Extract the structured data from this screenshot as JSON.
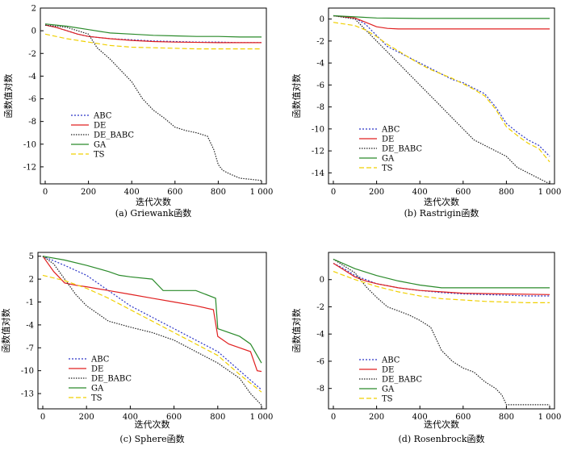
{
  "shared": {
    "xlabel": "迭代次数",
    "ylabel": "函数值对数",
    "legend": [
      {
        "name": "ABC",
        "color": "#2b35c7",
        "dash": "2,2"
      },
      {
        "name": "DE",
        "color": "#e02020",
        "dash": ""
      },
      {
        "name": "DE_BABC",
        "color": "#222222",
        "dash": "1.5,1.5"
      },
      {
        "name": "GA",
        "color": "#2a8a2a",
        "dash": ""
      },
      {
        "name": "TS",
        "color": "#f0d000",
        "dash": "6,3"
      }
    ]
  },
  "chart_data": [
    {
      "type": "line",
      "caption": "(a) Griewank函数",
      "xlim": [
        0,
        1000
      ],
      "ylim": [
        -13.5,
        2
      ],
      "xticks": [
        {
          "v": 0,
          "label": "0"
        },
        {
          "v": 200,
          "label": "200"
        },
        {
          "v": 400,
          "label": "400"
        },
        {
          "v": 600,
          "label": "600"
        },
        {
          "v": 800,
          "label": "800"
        },
        {
          "v": 1000,
          "label": "1 000"
        }
      ],
      "yticks": [
        {
          "v": 2,
          "label": "2"
        },
        {
          "v": 0,
          "label": "0"
        },
        {
          "v": -2,
          "label": "-2"
        },
        {
          "v": -4,
          "label": "-4"
        },
        {
          "v": -6,
          "label": "-6"
        },
        {
          "v": -8,
          "label": "-8"
        },
        {
          "v": -10,
          "label": "-10"
        },
        {
          "v": -12,
          "label": "-12"
        }
      ],
      "series": [
        {
          "name": "ABC",
          "x": [
            0,
            50,
            100,
            150,
            200,
            300,
            400,
            500,
            600,
            700,
            800,
            900,
            1000
          ],
          "y": [
            0.5,
            0.3,
            0.0,
            -0.3,
            -0.5,
            -0.7,
            -0.8,
            -0.9,
            -0.95,
            -1.0,
            -1.0,
            -1.05,
            -1.05
          ]
        },
        {
          "name": "DE",
          "x": [
            0,
            50,
            100,
            150,
            200,
            300,
            400,
            500,
            600,
            800,
            1000
          ],
          "y": [
            0.5,
            0.3,
            0.0,
            -0.3,
            -0.5,
            -0.7,
            -0.85,
            -0.95,
            -1.0,
            -1.05,
            -1.05
          ]
        },
        {
          "name": "DE_BABC",
          "x": [
            0,
            100,
            200,
            240,
            300,
            350,
            400,
            450,
            500,
            550,
            600,
            650,
            700,
            750,
            780,
            800,
            820,
            850,
            900,
            950,
            1000
          ],
          "y": [
            0.5,
            0.3,
            -0.3,
            -1.5,
            -2.5,
            -3.5,
            -4.5,
            -6.0,
            -7.0,
            -7.7,
            -8.5,
            -8.8,
            -9.0,
            -9.3,
            -10.5,
            -11.8,
            -12.3,
            -12.6,
            -13.0,
            -13.1,
            -13.2
          ]
        },
        {
          "name": "GA",
          "x": [
            0,
            100,
            200,
            300,
            400,
            500,
            600,
            700,
            800,
            900,
            1000
          ],
          "y": [
            0.6,
            0.4,
            0.1,
            -0.2,
            -0.3,
            -0.4,
            -0.45,
            -0.5,
            -0.5,
            -0.55,
            -0.55
          ]
        },
        {
          "name": "TS",
          "x": [
            0,
            100,
            200,
            300,
            400,
            500,
            600,
            700,
            800,
            900,
            1000
          ],
          "y": [
            -0.3,
            -0.7,
            -1.0,
            -1.3,
            -1.45,
            -1.5,
            -1.55,
            -1.6,
            -1.6,
            -1.6,
            -1.6
          ]
        }
      ]
    },
    {
      "type": "line",
      "caption": "(b) Rastrigin函数",
      "xlim": [
        0,
        1000
      ],
      "ylim": [
        -15,
        1
      ],
      "xticks": [
        {
          "v": 0,
          "label": "0"
        },
        {
          "v": 200,
          "label": "200"
        },
        {
          "v": 400,
          "label": "400"
        },
        {
          "v": 600,
          "label": "600"
        },
        {
          "v": 800,
          "label": "800"
        },
        {
          "v": 1000,
          "label": "1 000"
        }
      ],
      "yticks": [
        {
          "v": 0,
          "label": "0"
        },
        {
          "v": -2,
          "label": "-2"
        },
        {
          "v": -4,
          "label": "-4"
        },
        {
          "v": -6,
          "label": "-6"
        },
        {
          "v": -8,
          "label": "-8"
        },
        {
          "v": -10,
          "label": "-10"
        },
        {
          "v": -12,
          "label": "-12"
        },
        {
          "v": -14,
          "label": "-14"
        }
      ],
      "series": [
        {
          "name": "ABC",
          "x": [
            0,
            100,
            150,
            200,
            250,
            300,
            350,
            400,
            450,
            500,
            550,
            600,
            650,
            700,
            750,
            800,
            850,
            900,
            950,
            1000
          ],
          "y": [
            0.3,
            0.1,
            -0.5,
            -1.5,
            -2.5,
            -3.0,
            -3.5,
            -4.0,
            -4.5,
            -5.0,
            -5.5,
            -5.8,
            -6.3,
            -6.8,
            -8.0,
            -9.5,
            -10.3,
            -11.0,
            -11.5,
            -12.5
          ]
        },
        {
          "name": "DE",
          "x": [
            0,
            100,
            150,
            200,
            250,
            300,
            400,
            600,
            800,
            1000
          ],
          "y": [
            0.3,
            0.1,
            -0.3,
            -0.7,
            -0.85,
            -0.9,
            -0.9,
            -0.9,
            -0.9,
            -0.9
          ]
        },
        {
          "name": "DE_BABC",
          "x": [
            0,
            100,
            150,
            200,
            250,
            300,
            350,
            400,
            450,
            500,
            550,
            600,
            650,
            700,
            750,
            800,
            850,
            900,
            950,
            1000
          ],
          "y": [
            0.3,
            0.0,
            -1.0,
            -2.0,
            -3.0,
            -4.0,
            -5.0,
            -6.0,
            -7.0,
            -8.0,
            -9.0,
            -10.0,
            -11.0,
            -11.5,
            -12.0,
            -12.5,
            -13.5,
            -14.0,
            -14.5,
            -15.0
          ]
        },
        {
          "name": "GA",
          "x": [
            0,
            100,
            200,
            400,
            600,
            800,
            1000
          ],
          "y": [
            0.3,
            0.2,
            0.1,
            0.05,
            0.05,
            0.05,
            0.05
          ]
        },
        {
          "name": "TS",
          "x": [
            0,
            100,
            150,
            200,
            250,
            300,
            350,
            400,
            450,
            500,
            550,
            600,
            650,
            700,
            750,
            800,
            850,
            900,
            950,
            1000
          ],
          "y": [
            -0.3,
            -0.6,
            -1.0,
            -1.6,
            -2.3,
            -2.9,
            -3.5,
            -4.1,
            -4.6,
            -5.0,
            -5.4,
            -5.9,
            -6.4,
            -7.0,
            -8.2,
            -9.8,
            -10.6,
            -11.3,
            -11.8,
            -13.0
          ]
        }
      ]
    },
    {
      "type": "line",
      "caption": "(c) Sphere函数",
      "xlim": [
        0,
        1000
      ],
      "ylim": [
        -15,
        5.5
      ],
      "xticks": [
        {
          "v": 0,
          "label": "0"
        },
        {
          "v": 200,
          "label": "200"
        },
        {
          "v": 400,
          "label": "400"
        },
        {
          "v": 600,
          "label": "600"
        },
        {
          "v": 800,
          "label": "800"
        },
        {
          "v": 1000,
          "label": "1 000"
        }
      ],
      "yticks": [
        {
          "v": 5,
          "label": "5"
        },
        {
          "v": 2,
          "label": "2"
        },
        {
          "v": -1,
          "label": "-1"
        },
        {
          "v": -4,
          "label": "-4"
        },
        {
          "v": -7,
          "label": "-7"
        },
        {
          "v": -10,
          "label": "-10"
        },
        {
          "v": -13,
          "label": "-13"
        }
      ],
      "series": [
        {
          "name": "ABC",
          "x": [
            0,
            100,
            200,
            300,
            400,
            500,
            600,
            700,
            800,
            900,
            1000
          ],
          "y": [
            5,
            3.8,
            2.5,
            0.5,
            -1.5,
            -3.0,
            -4.5,
            -6.0,
            -7.5,
            -10.0,
            -12.5
          ]
        },
        {
          "name": "DE",
          "x": [
            0,
            50,
            100,
            150,
            200,
            300,
            400,
            500,
            600,
            700,
            780,
            800,
            850,
            900,
            950,
            980,
            1000
          ],
          "y": [
            5,
            3.0,
            1.5,
            1.2,
            1.0,
            0.5,
            0.0,
            -0.5,
            -1.0,
            -1.5,
            -2.0,
            -5.5,
            -6.5,
            -7.0,
            -7.5,
            -10.0,
            -10.1
          ]
        },
        {
          "name": "DE_BABC",
          "x": [
            0,
            50,
            100,
            150,
            200,
            250,
            300,
            400,
            500,
            600,
            700,
            800,
            850,
            900,
            950,
            1000
          ],
          "y": [
            5,
            4.0,
            2.0,
            0.0,
            -1.5,
            -2.5,
            -3.5,
            -4.3,
            -5.0,
            -6.0,
            -7.5,
            -9.0,
            -10.0,
            -11.0,
            -13.0,
            -14.5
          ]
        },
        {
          "name": "GA",
          "x": [
            0,
            100,
            200,
            300,
            350,
            400,
            500,
            550,
            600,
            700,
            790,
            800,
            900,
            950,
            1000
          ],
          "y": [
            5,
            4.5,
            3.8,
            3.0,
            2.5,
            2.3,
            2.0,
            0.5,
            0.5,
            0.5,
            -0.5,
            -4.5,
            -5.5,
            -6.5,
            -9.0
          ]
        },
        {
          "name": "TS",
          "x": [
            0,
            100,
            200,
            300,
            400,
            500,
            600,
            700,
            800,
            900,
            1000
          ],
          "y": [
            2.5,
            1.8,
            0.8,
            -0.5,
            -2.0,
            -3.5,
            -5.0,
            -6.5,
            -8.0,
            -10.5,
            -12.8
          ]
        }
      ]
    },
    {
      "type": "line",
      "caption": "(d) Rosenbrock函数",
      "xlim": [
        0,
        1000
      ],
      "ylim": [
        -9.5,
        2
      ],
      "xticks": [
        {
          "v": 0,
          "label": "0"
        },
        {
          "v": 200,
          "label": "200"
        },
        {
          "v": 400,
          "label": "400"
        },
        {
          "v": 600,
          "label": "600"
        },
        {
          "v": 800,
          "label": "800"
        },
        {
          "v": 1000,
          "label": "1 000"
        }
      ],
      "yticks": [
        {
          "v": 0,
          "label": "0"
        },
        {
          "v": -2,
          "label": "-2"
        },
        {
          "v": -4,
          "label": "-4"
        },
        {
          "v": -6,
          "label": "-6"
        },
        {
          "v": -8,
          "label": "-8"
        }
      ],
      "series": [
        {
          "name": "ABC",
          "x": [
            0,
            50,
            100,
            150,
            200,
            300,
            400,
            500,
            600,
            700,
            800,
            900,
            1000
          ],
          "y": [
            1.2,
            0.8,
            0.3,
            0.0,
            -0.3,
            -0.6,
            -0.8,
            -0.95,
            -1.05,
            -1.1,
            -1.15,
            -1.2,
            -1.2
          ]
        },
        {
          "name": "DE",
          "x": [
            0,
            50,
            100,
            150,
            200,
            300,
            400,
            500,
            600,
            800,
            1000
          ],
          "y": [
            1.2,
            0.7,
            0.2,
            -0.1,
            -0.3,
            -0.6,
            -0.8,
            -0.9,
            -1.0,
            -1.05,
            -1.1
          ]
        },
        {
          "name": "DE_BABC",
          "x": [
            0,
            100,
            150,
            200,
            250,
            300,
            350,
            400,
            450,
            480,
            500,
            550,
            600,
            650,
            700,
            750,
            780,
            800,
            850,
            900,
            1000
          ],
          "y": [
            1.5,
            0.5,
            -0.5,
            -1.3,
            -2.0,
            -2.3,
            -2.6,
            -3.0,
            -3.5,
            -4.5,
            -5.2,
            -6.0,
            -6.5,
            -6.8,
            -7.5,
            -8.0,
            -8.5,
            -9.2,
            -9.2,
            -9.2,
            -9.2
          ]
        },
        {
          "name": "GA",
          "x": [
            0,
            100,
            200,
            300,
            400,
            500,
            600,
            800,
            1000
          ],
          "y": [
            1.5,
            0.8,
            0.3,
            -0.1,
            -0.4,
            -0.6,
            -0.6,
            -0.6,
            -0.6
          ]
        },
        {
          "name": "TS",
          "x": [
            0,
            100,
            200,
            300,
            400,
            500,
            600,
            700,
            800,
            900,
            1000
          ],
          "y": [
            0.6,
            0.0,
            -0.5,
            -0.9,
            -1.2,
            -1.4,
            -1.5,
            -1.6,
            -1.65,
            -1.7,
            -1.7
          ]
        }
      ]
    }
  ]
}
